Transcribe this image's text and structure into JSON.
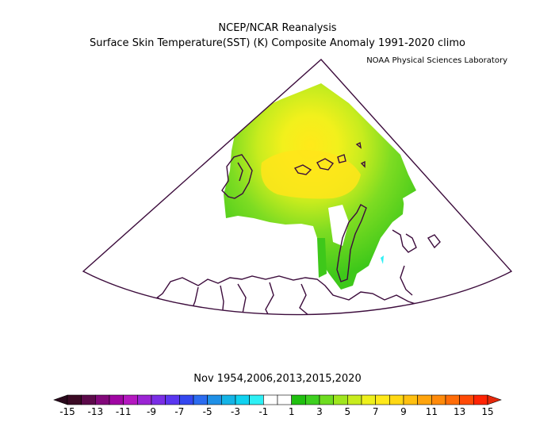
{
  "header": {
    "title": "NCEP/NCAR Reanalysis",
    "subtitle": "Surface Skin Temperature(SST) (K) Composite Anomaly 1991-2020 climo",
    "credit": "NOAA Physical Sciences Laboratory"
  },
  "caption": "Nov 1954,2006,2013,2015,2020",
  "colorbar": {
    "tick_labels": [
      "-15",
      "-13",
      "-11",
      "-9",
      "-7",
      "-5",
      "-3",
      "-1",
      "1",
      "3",
      "5",
      "7",
      "9",
      "11",
      "13",
      "15"
    ],
    "colors": [
      "#3b0a24",
      "#5c0a4a",
      "#82087a",
      "#a005a3",
      "#b418c0",
      "#9b24d4",
      "#7a2ee6",
      "#5a36f0",
      "#3447f0",
      "#2c6cf0",
      "#1f90e6",
      "#14b4e6",
      "#10d2f0",
      "#2ef0f5",
      "#ffffff",
      "#ffffff",
      "#20c010",
      "#3ed020",
      "#6edc20",
      "#a0e61e",
      "#c8ec1e",
      "#eef01c",
      "#ffe91a",
      "#ffd814",
      "#ffc010",
      "#ffa40c",
      "#ff8a0a",
      "#ff6c08",
      "#ff4a06",
      "#ff2404"
    ],
    "left_arrow_color": "#2a0a1c",
    "right_arrow_color": "#e6280a"
  },
  "map": {
    "region": "Barents Sea / Arctic sector",
    "outline_color": "#3c0c3c"
  }
}
